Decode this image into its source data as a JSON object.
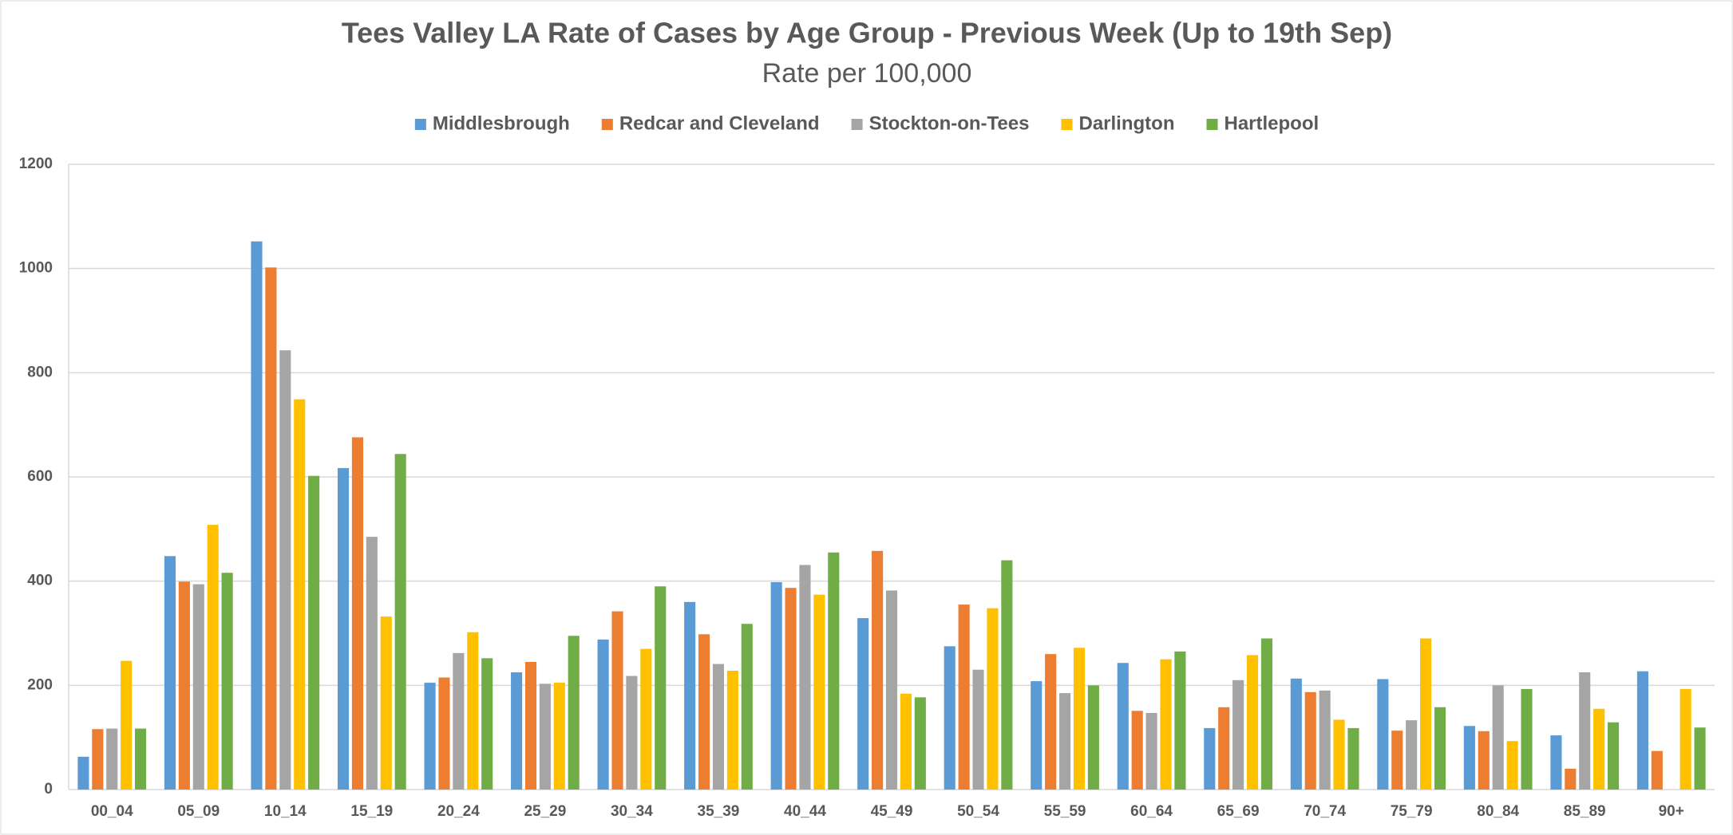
{
  "chart_data": {
    "type": "bar",
    "title": "Tees Valley LA Rate of Cases by Age Group - Previous Week (Up to 19th Sep)",
    "subtitle": "Rate per 100,000",
    "categories": [
      "00_04",
      "05_09",
      "10_14",
      "15_19",
      "20_24",
      "25_29",
      "30_34",
      "35_39",
      "40_44",
      "45_49",
      "50_54",
      "55_59",
      "60_64",
      "65_69",
      "70_74",
      "75_79",
      "80_84",
      "85_89",
      "90+"
    ],
    "series": [
      {
        "name": "Middlesbrough",
        "color": "#5b9bd5",
        "values": [
          63,
          448,
          1052,
          617,
          205,
          225,
          288,
          360,
          398,
          329,
          275,
          208,
          243,
          118,
          213,
          212,
          122,
          104,
          227
        ]
      },
      {
        "name": "Redcar and Cleveland",
        "color": "#ed7d31",
        "values": [
          116,
          399,
          1002,
          676,
          215,
          245,
          342,
          298,
          387,
          458,
          355,
          260,
          151,
          158,
          187,
          113,
          112,
          40,
          74
        ]
      },
      {
        "name": "Stockton-on-Tees",
        "color": "#a5a5a5",
        "values": [
          117,
          394,
          843,
          485,
          262,
          203,
          218,
          241,
          431,
          382,
          230,
          185,
          147,
          210,
          190,
          133,
          200,
          225,
          0
        ]
      },
      {
        "name": "Darlington",
        "color": "#ffc000",
        "values": [
          247,
          508,
          749,
          332,
          302,
          205,
          270,
          228,
          374,
          184,
          348,
          272,
          250,
          258,
          134,
          290,
          93,
          155,
          193
        ]
      },
      {
        "name": "Hartlepool",
        "color": "#70ad47",
        "values": [
          117,
          416,
          602,
          644,
          252,
          295,
          390,
          318,
          455,
          177,
          440,
          200,
          265,
          290,
          118,
          158,
          193,
          129,
          119
        ]
      }
    ],
    "ylim": [
      0,
      1200
    ],
    "yticks": [
      0,
      200,
      400,
      600,
      800,
      1000,
      1200
    ],
    "grid": true,
    "legend": "top"
  }
}
